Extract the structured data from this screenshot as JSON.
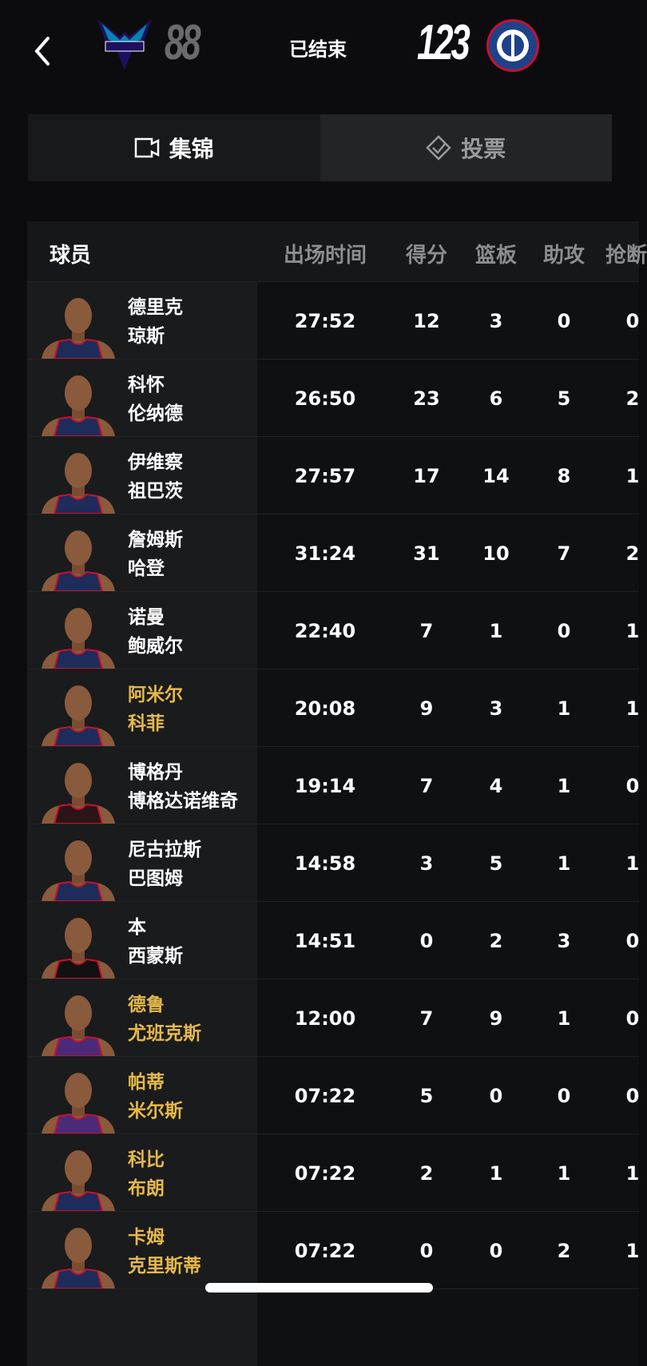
{
  "header": {
    "away_team": "Charlotte Hornets",
    "away_score": "88",
    "status": "已结束",
    "home_team": "LA Clippers",
    "home_score": "123"
  },
  "tabs": [
    {
      "label": "集锦",
      "icon": "video-icon",
      "active": true
    },
    {
      "label": "投票",
      "icon": "vote-diamond-check-icon",
      "active": false
    }
  ],
  "table": {
    "headers": [
      "球员",
      "出场时间",
      "得分",
      "篮板",
      "助攻",
      "抢断"
    ],
    "rows": [
      {
        "name1": "德里克",
        "name2": "琼斯",
        "min": "27:52",
        "pts": "12",
        "reb": "3",
        "ast": "0",
        "stl": "0",
        "bench": false,
        "jersey": "#1d2c5a"
      },
      {
        "name1": "科怀",
        "name2": "伦纳德",
        "min": "26:50",
        "pts": "23",
        "reb": "6",
        "ast": "5",
        "stl": "2",
        "bench": false,
        "jersey": "#1d2c5a"
      },
      {
        "name1": "伊维察",
        "name2": "祖巴茨",
        "min": "27:57",
        "pts": "17",
        "reb": "14",
        "ast": "8",
        "stl": "1",
        "bench": false,
        "jersey": "#1d2c5a"
      },
      {
        "name1": "詹姆斯",
        "name2": "哈登",
        "min": "31:24",
        "pts": "31",
        "reb": "10",
        "ast": "7",
        "stl": "2",
        "bench": false,
        "jersey": "#1d2c5a"
      },
      {
        "name1": "诺曼",
        "name2": "鲍威尔",
        "min": "22:40",
        "pts": "7",
        "reb": "1",
        "ast": "0",
        "stl": "1",
        "bench": false,
        "jersey": "#1d2c5a"
      },
      {
        "name1": "阿米尔",
        "name2": "科菲",
        "min": "20:08",
        "pts": "9",
        "reb": "3",
        "ast": "1",
        "stl": "1",
        "bench": true,
        "jersey": "#1d2c5a"
      },
      {
        "name1": "博格丹",
        "name2": "博格达诺维奇",
        "min": "19:14",
        "pts": "7",
        "reb": "4",
        "ast": "1",
        "stl": "0",
        "bench": false,
        "jersey": "#2a1416"
      },
      {
        "name1": "尼古拉斯",
        "name2": "巴图姆",
        "min": "14:58",
        "pts": "3",
        "reb": "5",
        "ast": "1",
        "stl": "1",
        "bench": false,
        "jersey": "#1d2c5a"
      },
      {
        "name1": "本",
        "name2": "西蒙斯",
        "min": "14:51",
        "pts": "0",
        "reb": "2",
        "ast": "3",
        "stl": "0",
        "bench": false,
        "jersey": "#111"
      },
      {
        "name1": "德鲁",
        "name2": "尤班克斯",
        "min": "12:00",
        "pts": "7",
        "reb": "9",
        "ast": "1",
        "stl": "0",
        "bench": true,
        "jersey": "#4b2a7a"
      },
      {
        "name1": "帕蒂",
        "name2": "米尔斯",
        "min": "07:22",
        "pts": "5",
        "reb": "0",
        "ast": "0",
        "stl": "0",
        "bench": true,
        "jersey": "#4b2a7a"
      },
      {
        "name1": "科比",
        "name2": "布朗",
        "min": "07:22",
        "pts": "2",
        "reb": "1",
        "ast": "1",
        "stl": "1",
        "bench": true,
        "jersey": "#1d2c5a"
      },
      {
        "name1": "卡姆",
        "name2": "克里斯蒂",
        "min": "07:22",
        "pts": "0",
        "reb": "0",
        "ast": "2",
        "stl": "1",
        "bench": true,
        "jersey": "#1d2c5a"
      }
    ]
  },
  "colors": {
    "bench_name": "#e5b84a",
    "background": "#0c0c0e"
  }
}
